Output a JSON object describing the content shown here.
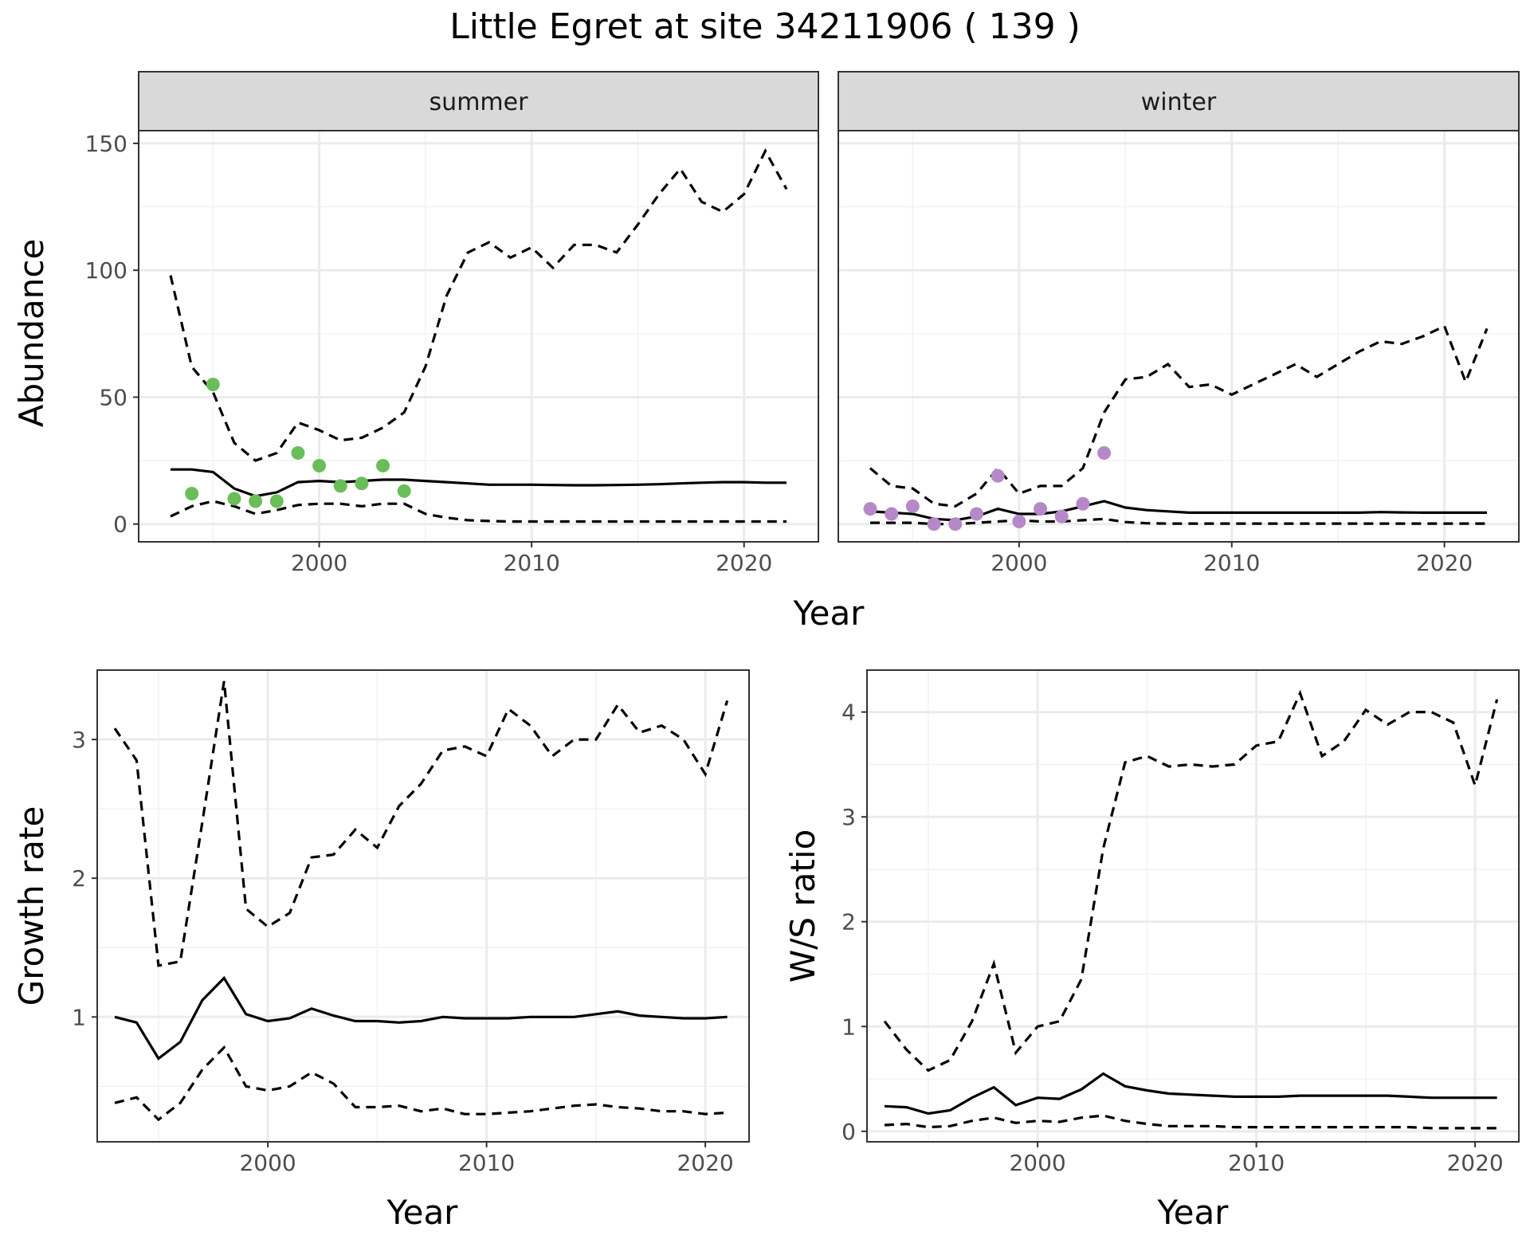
{
  "title": "Little Egret at site 34211906 ( 139 )",
  "colors": {
    "summer_points": "#6ABE59",
    "winter_points": "#B589C7",
    "line": "#000000",
    "grid_major": "#EBEBEB",
    "grid_minor": "#F2F2F2",
    "strip_fill": "#D9D9D9",
    "panel_border": "#333333"
  },
  "chart_data": [
    {
      "type": "line",
      "facets": [
        "summer",
        "winter"
      ],
      "xlabel": "Year",
      "ylabel": "Abundance",
      "xlim": [
        1991.5,
        2023.5
      ],
      "ylim": [
        -7,
        155
      ],
      "xticks": [
        2000,
        2010,
        2020
      ],
      "yticks": [
        0,
        50,
        100,
        150
      ],
      "grid": true,
      "panels": [
        {
          "strip": "summer",
          "x": [
            1993,
            1994,
            1995,
            1996,
            1997,
            1998,
            1999,
            2000,
            2001,
            2002,
            2003,
            2004,
            2005,
            2006,
            2007,
            2008,
            2009,
            2010,
            2011,
            2012,
            2013,
            2014,
            2015,
            2016,
            2017,
            2018,
            2019,
            2020,
            2021,
            2022
          ],
          "mean": [
            21.5,
            21.5,
            20.5,
            14,
            11,
            12.5,
            16.5,
            17,
            16.5,
            17,
            17.5,
            17.5,
            17,
            16.5,
            16,
            15.5,
            15.5,
            15.5,
            15.4,
            15.3,
            15.3,
            15.4,
            15.5,
            15.7,
            16,
            16.3,
            16.5,
            16.5,
            16.3,
            16.3
          ],
          "upper": [
            98,
            62,
            52,
            32,
            25,
            28,
            40,
            37,
            33,
            34,
            38,
            44,
            62,
            90,
            107,
            111,
            105,
            109,
            101,
            110,
            110,
            107,
            118,
            130,
            140,
            127,
            123,
            130,
            147,
            132
          ],
          "lower": [
            3,
            7,
            9,
            7,
            4,
            5.5,
            7.5,
            8,
            8,
            7,
            8,
            8,
            4,
            2.5,
            1.5,
            1.2,
            1,
            1,
            1,
            1,
            1,
            1,
            1,
            1,
            1,
            1,
            1,
            1,
            1,
            1
          ],
          "points": {
            "x": [
              1994,
              1995,
              1996,
              1997,
              1998,
              1999,
              2000,
              2001,
              2002,
              2003,
              2004
            ],
            "y": [
              12,
              55,
              10,
              9,
              9,
              28,
              23,
              15,
              16,
              23,
              13
            ]
          }
        },
        {
          "strip": "winter",
          "x": [
            1993,
            1994,
            1995,
            1996,
            1997,
            1998,
            1999,
            2000,
            2001,
            2002,
            2003,
            2004,
            2005,
            2006,
            2007,
            2008,
            2009,
            2010,
            2011,
            2012,
            2013,
            2014,
            2015,
            2016,
            2017,
            2018,
            2019,
            2020,
            2021,
            2022
          ],
          "mean": [
            5,
            4.5,
            4,
            2,
            1.5,
            3,
            6,
            4,
            4,
            5,
            7,
            9,
            6.5,
            5.5,
            5,
            4.5,
            4.5,
            4.5,
            4.5,
            4.5,
            4.5,
            4.5,
            4.5,
            4.5,
            4.7,
            4.6,
            4.5,
            4.5,
            4.5,
            4.5
          ],
          "upper": [
            22,
            15,
            14,
            8,
            7,
            12,
            22,
            12,
            15,
            15,
            22,
            44,
            57,
            58,
            63,
            54,
            55,
            51,
            55,
            59,
            63,
            58,
            63,
            68,
            72,
            71,
            74,
            78,
            56,
            77
          ],
          "lower": [
            0.5,
            0.5,
            0.5,
            0,
            0,
            0.5,
            1,
            1.5,
            1,
            1,
            1.5,
            2,
            0.8,
            0.3,
            0.2,
            0.2,
            0.2,
            0.2,
            0.2,
            0.2,
            0.2,
            0.2,
            0.2,
            0.2,
            0.2,
            0.2,
            0.2,
            0.2,
            0.2,
            0.2
          ],
          "points": {
            "x": [
              1993,
              1994,
              1995,
              1996,
              1997,
              1998,
              1999,
              2000,
              2001,
              2002,
              2003,
              2004
            ],
            "y": [
              6,
              4,
              7,
              0,
              0,
              4,
              19,
              1,
              6,
              3,
              8,
              28
            ]
          }
        }
      ]
    },
    {
      "type": "line",
      "xlabel": "Year",
      "ylabel": "Growth rate",
      "xlim": [
        1992.2,
        2022.0
      ],
      "ylim": [
        0.1,
        3.5
      ],
      "xticks": [
        2000,
        2010,
        2020
      ],
      "yticks": [
        1,
        2,
        3
      ],
      "grid": true,
      "x": [
        1993,
        1994,
        1995,
        1996,
        1997,
        1998,
        1999,
        2000,
        2001,
        2002,
        2003,
        2004,
        2005,
        2006,
        2007,
        2008,
        2009,
        2010,
        2011,
        2012,
        2013,
        2014,
        2015,
        2016,
        2017,
        2018,
        2019,
        2020,
        2021
      ],
      "mean": [
        1.0,
        0.96,
        0.7,
        0.82,
        1.12,
        1.28,
        1.02,
        0.97,
        0.99,
        1.06,
        1.01,
        0.97,
        0.97,
        0.96,
        0.97,
        1.0,
        0.99,
        0.99,
        0.99,
        1.0,
        1.0,
        1.0,
        1.02,
        1.04,
        1.01,
        1.0,
        0.99,
        0.99,
        1.0
      ],
      "upper": [
        3.08,
        2.85,
        1.37,
        1.4,
        2.4,
        3.42,
        1.78,
        1.65,
        1.75,
        2.15,
        2.17,
        2.35,
        2.22,
        2.52,
        2.68,
        2.92,
        2.95,
        2.88,
        3.22,
        3.1,
        2.88,
        3.0,
        3.0,
        3.25,
        3.05,
        3.1,
        3.0,
        2.75,
        3.28
      ],
      "lower": [
        0.38,
        0.42,
        0.26,
        0.38,
        0.62,
        0.78,
        0.5,
        0.47,
        0.5,
        0.6,
        0.52,
        0.35,
        0.35,
        0.36,
        0.32,
        0.34,
        0.3,
        0.3,
        0.31,
        0.32,
        0.34,
        0.36,
        0.37,
        0.35,
        0.34,
        0.32,
        0.32,
        0.3,
        0.31
      ]
    },
    {
      "type": "line",
      "xlabel": "Year",
      "ylabel": "W/S ratio",
      "xlim": [
        1992.2,
        2022.0
      ],
      "ylim": [
        -0.1,
        4.4
      ],
      "xticks": [
        2000,
        2010,
        2020
      ],
      "yticks": [
        0,
        1,
        2,
        3,
        4
      ],
      "grid": true,
      "x": [
        1993,
        1994,
        1995,
        1996,
        1997,
        1998,
        1999,
        2000,
        2001,
        2002,
        2003,
        2004,
        2005,
        2006,
        2007,
        2008,
        2009,
        2010,
        2011,
        2012,
        2013,
        2014,
        2015,
        2016,
        2017,
        2018,
        2019,
        2020,
        2021
      ],
      "mean": [
        0.24,
        0.23,
        0.17,
        0.2,
        0.32,
        0.42,
        0.25,
        0.32,
        0.31,
        0.4,
        0.55,
        0.43,
        0.39,
        0.36,
        0.35,
        0.34,
        0.33,
        0.33,
        0.33,
        0.34,
        0.34,
        0.34,
        0.34,
        0.34,
        0.33,
        0.32,
        0.32,
        0.32,
        0.32
      ],
      "upper": [
        1.05,
        0.78,
        0.58,
        0.68,
        1.05,
        1.6,
        0.75,
        1.0,
        1.05,
        1.45,
        2.7,
        3.52,
        3.58,
        3.48,
        3.5,
        3.48,
        3.5,
        3.68,
        3.72,
        4.18,
        3.58,
        3.72,
        4.02,
        3.88,
        4.0,
        4.0,
        3.9,
        3.3,
        4.12
      ],
      "lower": [
        0.06,
        0.07,
        0.04,
        0.05,
        0.1,
        0.13,
        0.08,
        0.1,
        0.09,
        0.13,
        0.15,
        0.1,
        0.07,
        0.05,
        0.05,
        0.05,
        0.04,
        0.04,
        0.04,
        0.04,
        0.04,
        0.04,
        0.04,
        0.04,
        0.04,
        0.03,
        0.03,
        0.03,
        0.03
      ]
    }
  ]
}
